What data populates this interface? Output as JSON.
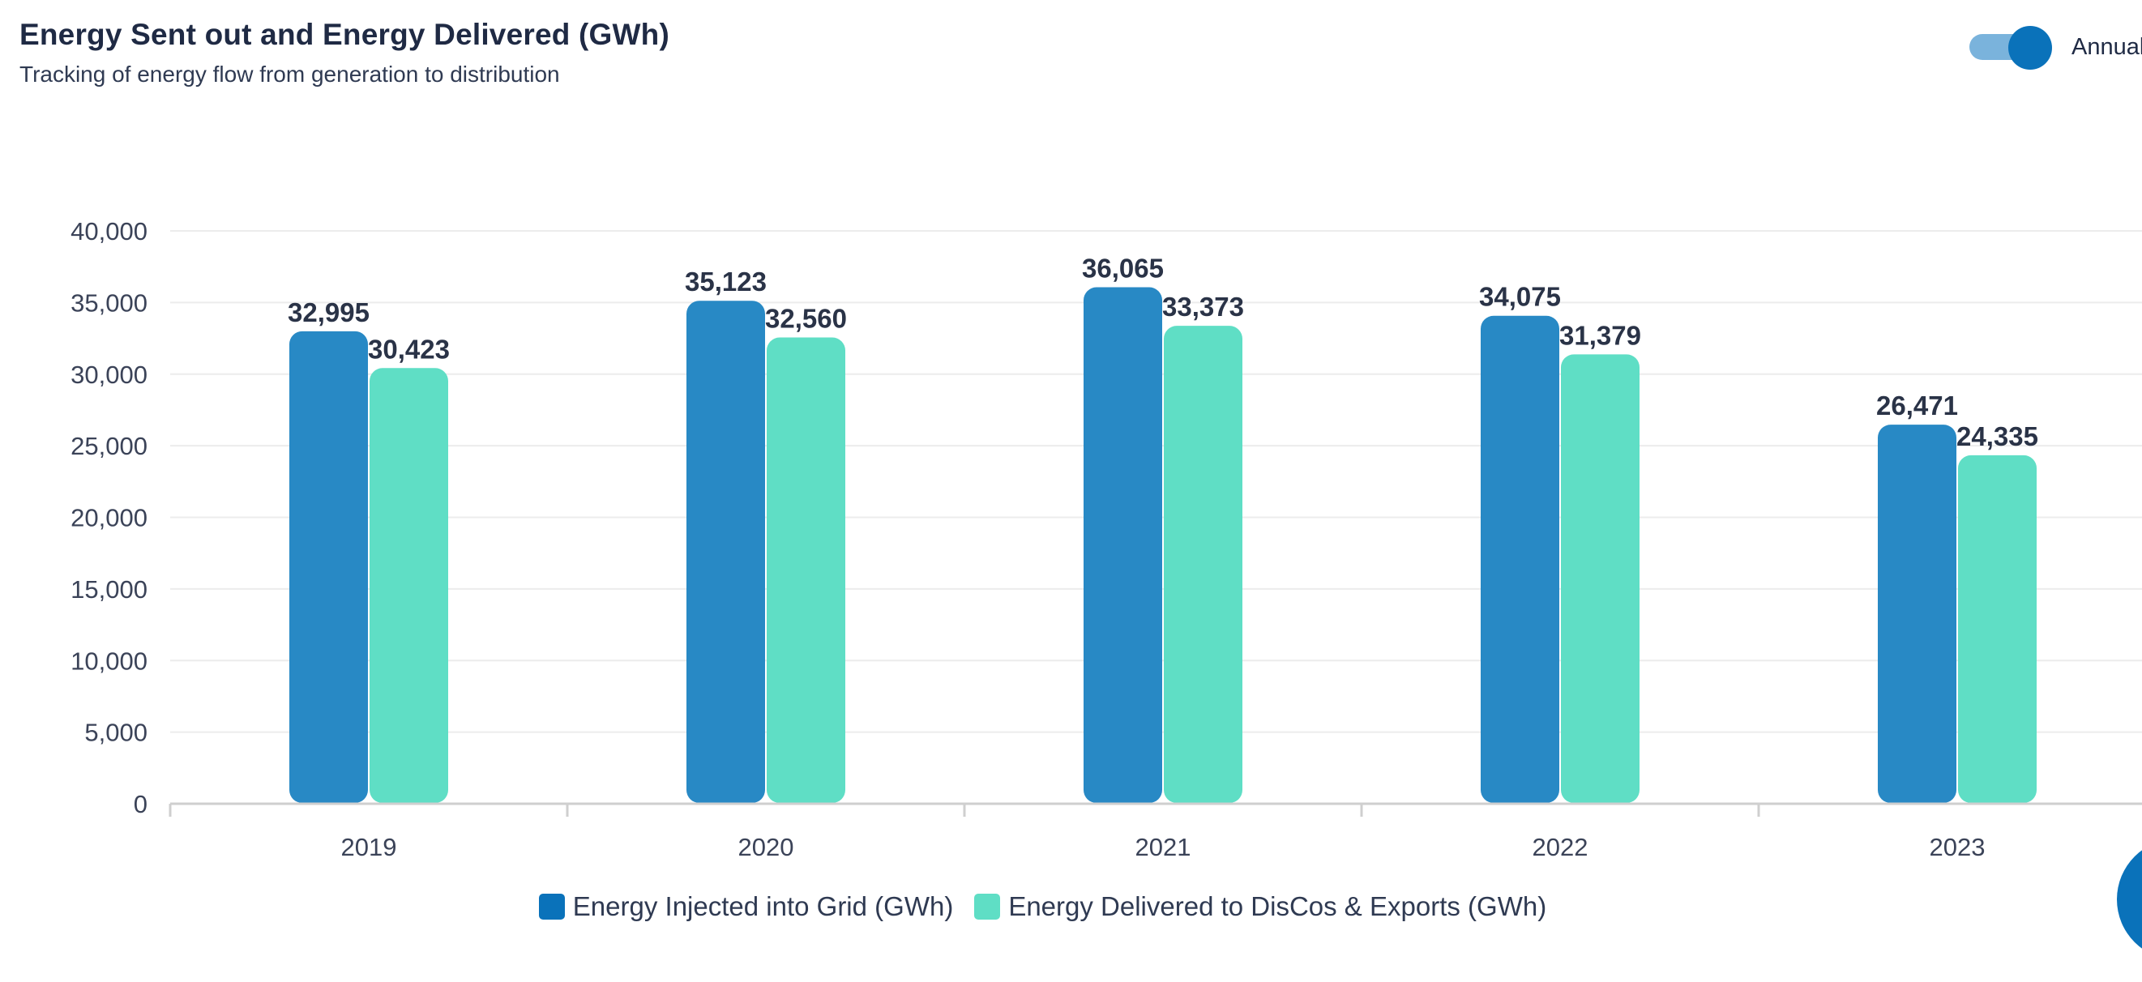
{
  "header": {
    "title": "Energy Sent out and Energy Delivered (GWh)",
    "subtitle": "Tracking of energy flow from generation to distribution"
  },
  "toggle": {
    "label": "Annual",
    "state": "on"
  },
  "colors": {
    "series1": "#2889c5",
    "series1_legend": "#0a72ba",
    "series2": "#5fdec5",
    "grid": "#ececec",
    "axis": "#cfcfcf"
  },
  "chart_data": {
    "type": "bar",
    "title": "Energy Sent out and Energy Delivered (GWh)",
    "subtitle": "Tracking of energy flow from generation to distribution",
    "categories": [
      "2019",
      "2020",
      "2021",
      "2022",
      "2023"
    ],
    "series": [
      {
        "name": "Energy Injected into Grid (GWh)",
        "values": [
          32995,
          35123,
          36065,
          34075,
          26471
        ],
        "labels": [
          "32,995",
          "35,123",
          "36,065",
          "34,075",
          "26,471"
        ]
      },
      {
        "name": "Energy Delivered to DisCos & Exports (GWh)",
        "values": [
          30423,
          32560,
          33373,
          31379,
          24335
        ],
        "labels": [
          "30,423",
          "32,560",
          "33,373",
          "31,379",
          "24,335"
        ]
      }
    ],
    "yticks": [
      0,
      5000,
      10000,
      15000,
      20000,
      25000,
      30000,
      35000,
      40000
    ],
    "ytick_labels": [
      "0",
      "5,000",
      "10,000",
      "15,000",
      "20,000",
      "25,000",
      "30,000",
      "35,000",
      "40,000"
    ],
    "ylim": [
      0,
      40000
    ],
    "xlabel": "",
    "ylabel": "",
    "grid": true,
    "legend_position": "bottom"
  }
}
